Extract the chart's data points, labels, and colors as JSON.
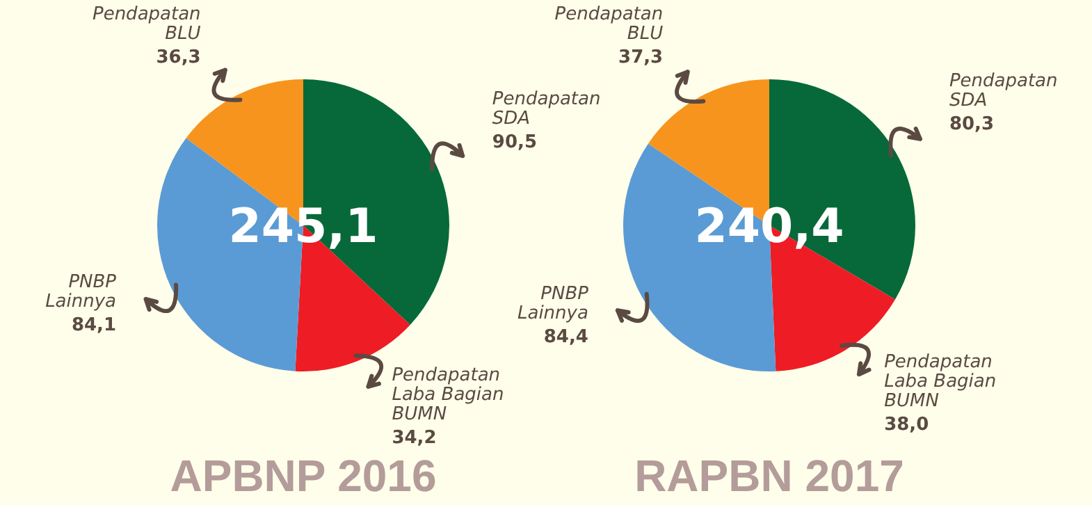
{
  "chart_data": [
    {
      "type": "pie",
      "title": "APBNP 2016",
      "categories": [
        "Pendapatan\nSDA",
        "Pendapatan\nLaba Bagian\nBUMN",
        "PNBP\nLainnya",
        "Pendapatan\nBLU"
      ],
      "values": [
        90.5,
        34.2,
        84.1,
        36.3
      ],
      "value_labels": [
        "90,5",
        "34,2",
        "84,1",
        "36,3"
      ],
      "colors": [
        "#07693a",
        "#ee1c25",
        "#5b9bd5",
        "#f7941d"
      ],
      "annotations": [
        "245,1"
      ]
    },
    {
      "type": "pie",
      "title": "RAPBN 2017",
      "categories": [
        "Pendapatan\nSDA",
        "Pendapatan\nLaba Bagian\nBUMN",
        "PNBP\nLainnya",
        "Pendapatan\nBLU"
      ],
      "values": [
        80.3,
        38.0,
        84.4,
        37.3
      ],
      "value_labels": [
        "80,3",
        "38,0",
        "84,4",
        "37,3"
      ],
      "colors": [
        "#07693a",
        "#ee1c25",
        "#5b9bd5",
        "#f7941d"
      ],
      "annotations": [
        "240,4"
      ]
    }
  ]
}
